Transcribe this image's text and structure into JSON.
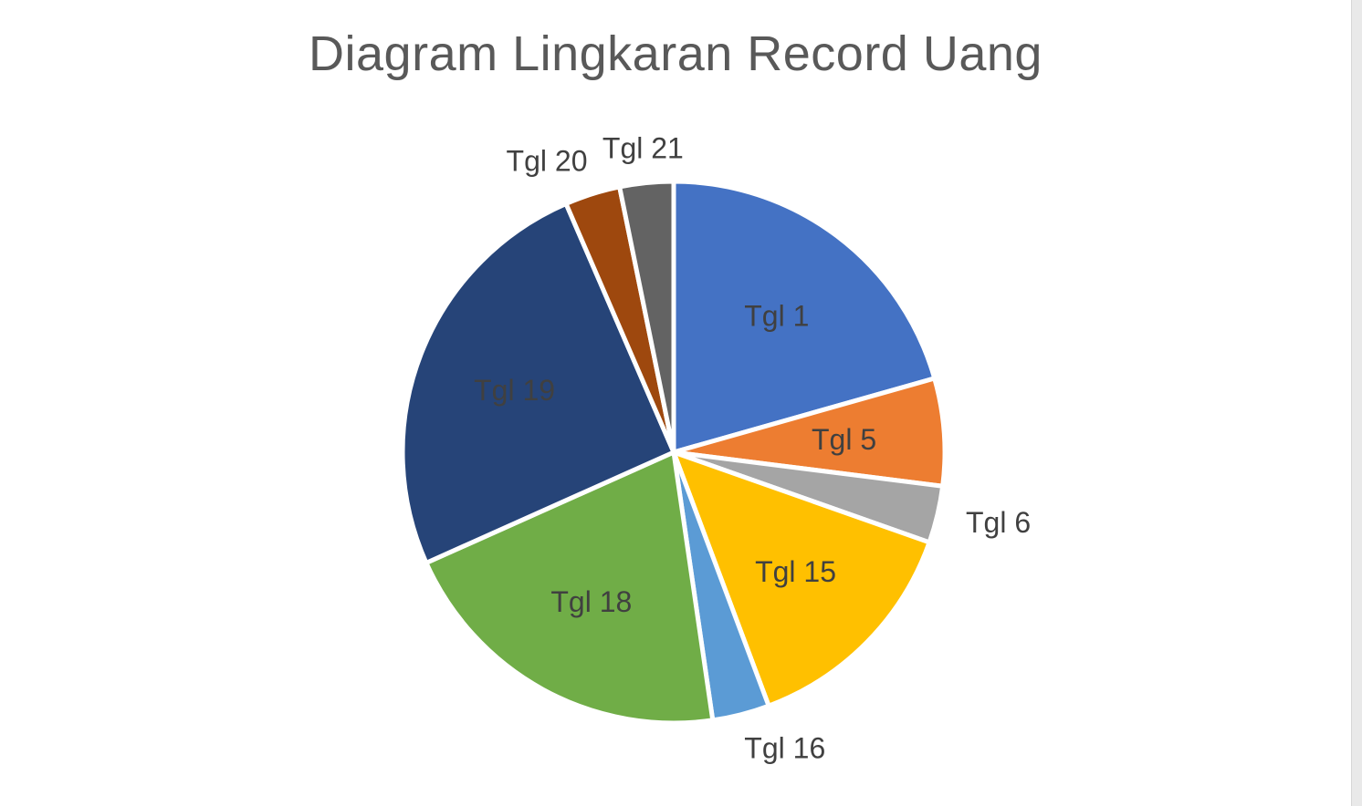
{
  "chart_data": {
    "type": "pie",
    "title": "Diagram Lingkaran Record Uang",
    "categories": [
      "Tgl 1",
      "Tgl 5",
      "Tgl 6",
      "Tgl 15",
      "Tgl 16",
      "Tgl 18",
      "Tgl 19",
      "Tgl 20",
      "Tgl 21"
    ],
    "values": [
      20.6,
      6.4,
      3.4,
      13.9,
      3.4,
      20.6,
      25.2,
      3.3,
      3.2
    ],
    "colors": [
      "#4472C4",
      "#ED7D31",
      "#A5A5A5",
      "#FFC000",
      "#5B9BD5",
      "#70AD47",
      "#264478",
      "#9E480E",
      "#636363"
    ],
    "label_positions": [
      "inside",
      "inside",
      "outside",
      "inside",
      "outside",
      "inside",
      "inside",
      "outside",
      "outside"
    ],
    "start_angle_deg": 0,
    "direction": "clockwise",
    "legend": "none"
  }
}
